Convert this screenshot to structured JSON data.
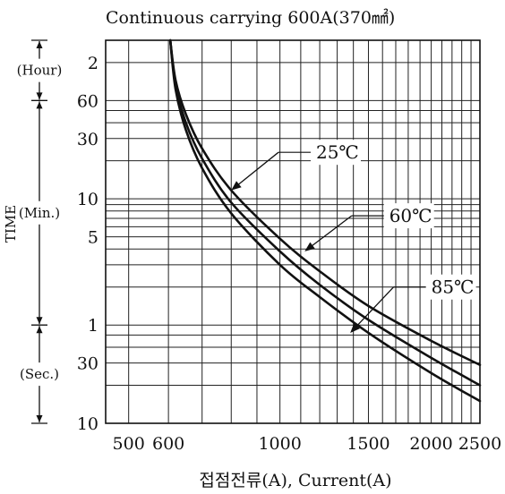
{
  "chart_data": {
    "type": "line",
    "title": "Continuous carrying 600A(370㎟)",
    "xlabel": "접점전류(A), Current(A)",
    "ylabel": "TIME",
    "x_scale": "log",
    "y_scale": "log",
    "xlim": [
      450,
      2500
    ],
    "ylim_seconds": [
      10,
      10800
    ],
    "x_ticks": [
      {
        "value": 500,
        "label": "500"
      },
      {
        "value": 600,
        "label": "600"
      },
      {
        "value": 1000,
        "label": "1000"
      },
      {
        "value": 1500,
        "label": "1500"
      },
      {
        "value": 2000,
        "label": "2000"
      },
      {
        "value": 2500,
        "label": "2500"
      }
    ],
    "y_ticks": [
      {
        "value_seconds": 10,
        "label": "10"
      },
      {
        "value_seconds": 30,
        "label": "30"
      },
      {
        "value_seconds": 60,
        "label": "1"
      },
      {
        "value_seconds": 300,
        "label": "5"
      },
      {
        "value_seconds": 600,
        "label": "10"
      },
      {
        "value_seconds": 1800,
        "label": "30"
      },
      {
        "value_seconds": 3600,
        "label": "60"
      },
      {
        "value_seconds": 7200,
        "label": "2"
      }
    ],
    "time_bands": [
      {
        "label": "(Hour)",
        "from_seconds": 3600,
        "to_seconds": 10800
      },
      {
        "label": "(Min.)",
        "from_seconds": 60,
        "to_seconds": 3600
      },
      {
        "label": "(Sec.)",
        "from_seconds": 10,
        "to_seconds": 60
      }
    ],
    "grid": true,
    "series": [
      {
        "name": "25℃",
        "points": [
          [
            605,
            10800
          ],
          [
            620,
            5200
          ],
          [
            650,
            2800
          ],
          [
            700,
            1500
          ],
          [
            800,
            700
          ],
          [
            1000,
            290
          ],
          [
            1200,
            160
          ],
          [
            1500,
            85
          ],
          [
            2000,
            45
          ],
          [
            2500,
            29
          ]
        ]
      },
      {
        "name": "60℃",
        "points": [
          [
            605,
            10800
          ],
          [
            620,
            4800
          ],
          [
            650,
            2400
          ],
          [
            700,
            1250
          ],
          [
            800,
            560
          ],
          [
            1000,
            230
          ],
          [
            1200,
            125
          ],
          [
            1500,
            66
          ],
          [
            2000,
            33
          ],
          [
            2500,
            20
          ]
        ]
      },
      {
        "name": "85℃",
        "points": [
          [
            605,
            10800
          ],
          [
            620,
            4400
          ],
          [
            650,
            2100
          ],
          [
            700,
            1050
          ],
          [
            800,
            460
          ],
          [
            1000,
            180
          ],
          [
            1200,
            100
          ],
          [
            1500,
            52
          ],
          [
            2000,
            25
          ],
          [
            2500,
            15
          ]
        ]
      }
    ],
    "annotations": [
      {
        "series": "25℃",
        "label": "25℃",
        "label_at": [
          1180,
          1400
        ],
        "arrow_to": [
          800,
          700
        ]
      },
      {
        "series": "60℃",
        "label": "60℃",
        "label_at": [
          1650,
          440
        ],
        "arrow_to": [
          1120,
          230
        ]
      },
      {
        "series": "85℃",
        "label": "85℃",
        "label_at": [
          2000,
          120
        ],
        "arrow_to": [
          1380,
          52
        ]
      }
    ]
  }
}
